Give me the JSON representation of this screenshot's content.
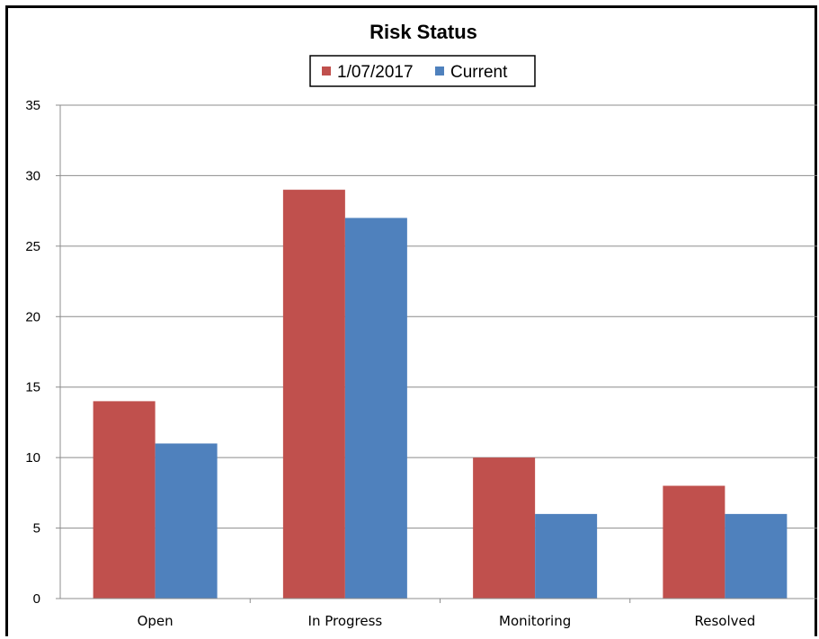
{
  "colors": {
    "series_1": "#c0504d",
    "series_2": "#4f81bd",
    "gridline": "#8c8c8c",
    "axis": "#8c8c8c"
  },
  "chart_data": {
    "type": "bar",
    "title": "Risk Status",
    "xlabel": "",
    "ylabel": "",
    "categories": [
      "Open",
      "In Progress",
      "Monitoring",
      "Resolved"
    ],
    "series": [
      {
        "name": "1/07/2017",
        "values": [
          14,
          29,
          10,
          8
        ]
      },
      {
        "name": "Current",
        "values": [
          11,
          27,
          6,
          6
        ]
      }
    ],
    "ylim": [
      0,
      35
    ],
    "yticks": [
      0,
      5,
      10,
      15,
      20,
      25,
      30,
      35
    ],
    "grid": true,
    "legend_position": "top"
  }
}
